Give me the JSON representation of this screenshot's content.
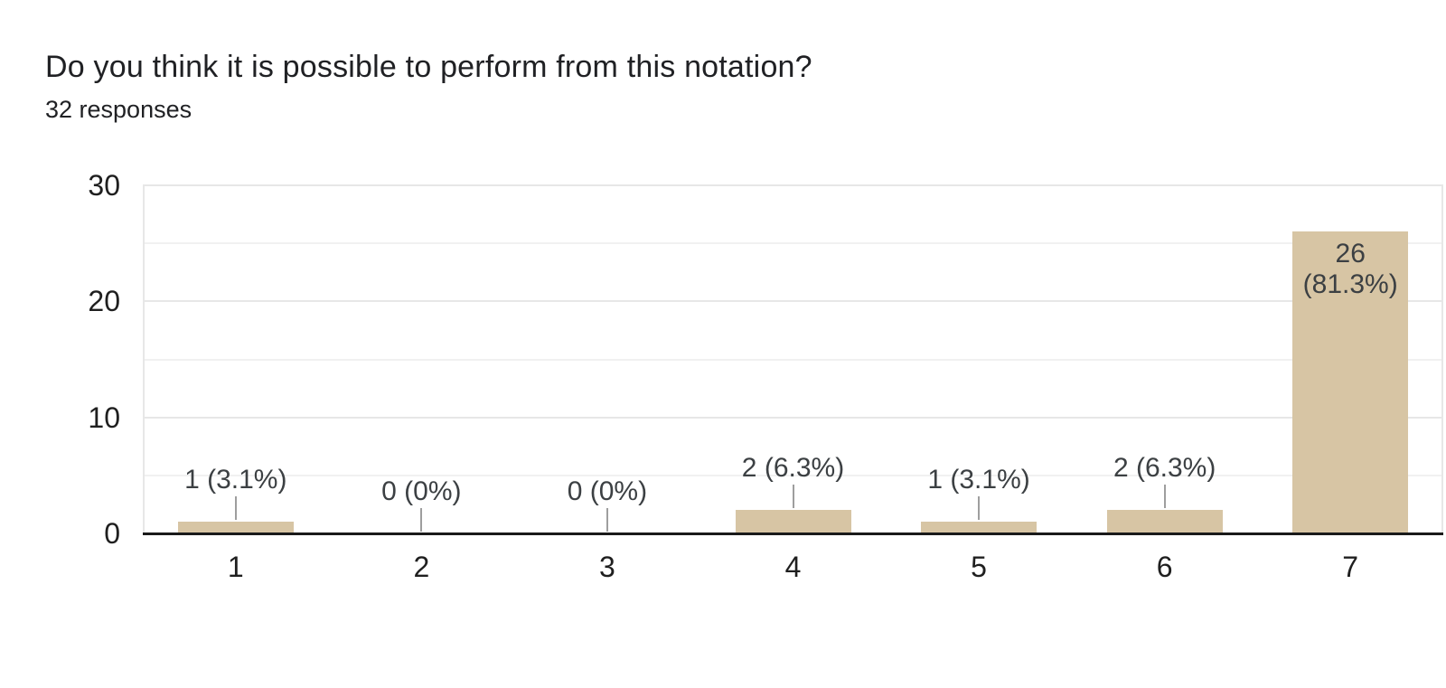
{
  "header": {
    "title": "Do you think it is possible to perform from this notation?",
    "subtitle": "32 responses"
  },
  "chart_data": {
    "type": "bar",
    "title": "Do you think it is possible to perform from this notation?",
    "subtitle": "32 responses",
    "categories": [
      "1",
      "2",
      "3",
      "4",
      "5",
      "6",
      "7"
    ],
    "values": [
      1,
      0,
      0,
      2,
      1,
      2,
      26
    ],
    "annotations": [
      {
        "lines": [
          "1 (3.1%)"
        ],
        "placement": "above"
      },
      {
        "lines": [
          "0 (0%)"
        ],
        "placement": "above"
      },
      {
        "lines": [
          "0 (0%)"
        ],
        "placement": "above"
      },
      {
        "lines": [
          "2 (6.3%)"
        ],
        "placement": "above"
      },
      {
        "lines": [
          "1 (3.1%)"
        ],
        "placement": "above"
      },
      {
        "lines": [
          "2 (6.3%)"
        ],
        "placement": "above"
      },
      {
        "lines": [
          "26",
          "(81.3%)"
        ],
        "placement": "inside"
      }
    ],
    "xlabel": "",
    "ylabel": "",
    "ylim": [
      0,
      30
    ],
    "yticks": [
      0,
      10,
      20,
      30
    ],
    "gridline_step": 5,
    "grid": true,
    "legend": "none",
    "colors": {
      "bar": "#d7c5a4",
      "annotation_text": "#3c4043",
      "axis_text": "#1f1f1f",
      "gridline_major": "#e7e7e7",
      "gridline_minor": "#f1f1f1",
      "baseline": "#1a1a1a",
      "leader_line": "#9e9e9e",
      "title_text": "#202124"
    }
  }
}
